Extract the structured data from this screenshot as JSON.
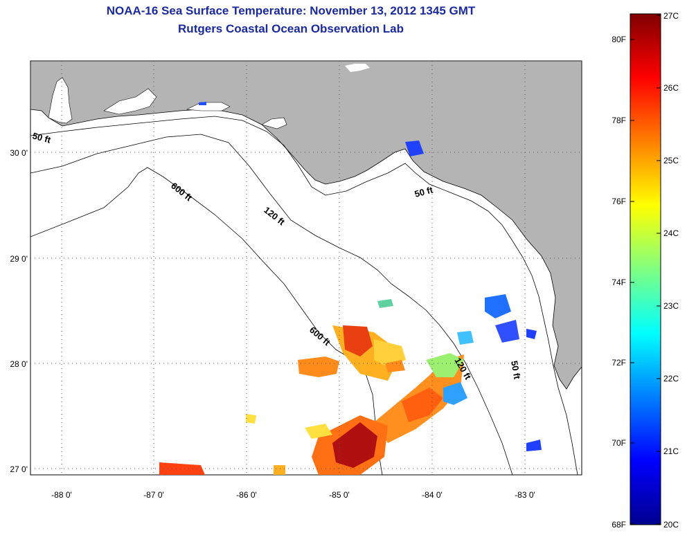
{
  "header": {
    "title": "NOAA-16 Sea Surface Temperature:  November 13, 2012 1345 GMT",
    "subtitle": "Rutgers Coastal Ocean Observation Lab"
  },
  "map": {
    "lat_labels": [
      "30 0'",
      "29 0'",
      "28 0'",
      "27 0'"
    ],
    "lon_labels": [
      "-88 0'",
      "-87 0'",
      "-86 0'",
      "-85 0'",
      "-84 0'",
      "-83 0'"
    ],
    "contour_labels": [
      "50 ft",
      "600 ft",
      "120 ft",
      "50 ft",
      "600 ft",
      "120 ft",
      "50 ft"
    ],
    "land_color": "#b4b4b4",
    "no_data_color": "#ffffff"
  },
  "colorbar": {
    "celsius_labels": [
      "27C",
      "26C",
      "25C",
      "24C",
      "23C",
      "22C",
      "21C",
      "20C"
    ],
    "fahrenheit_labels": [
      "80F",
      "78F",
      "76F",
      "74F",
      "72F",
      "70F",
      "68F"
    ]
  }
}
